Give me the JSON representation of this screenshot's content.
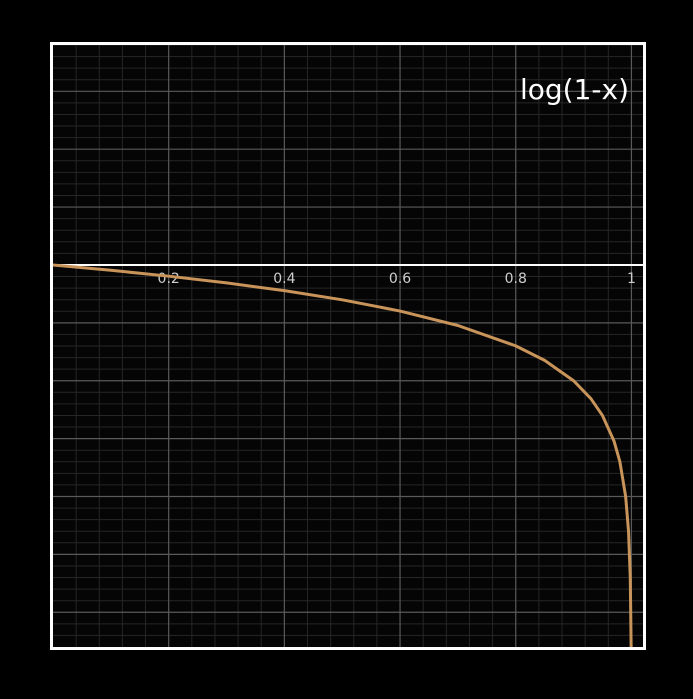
{
  "chart_data": {
    "type": "line",
    "title": "log(1-x)",
    "xlabel": "",
    "ylabel": "",
    "xlim": [
      0,
      1.02
    ],
    "ylim": [
      -3.3,
      1.9
    ],
    "x_ticks": [
      {
        "value": 0.2,
        "label": "0.2"
      },
      {
        "value": 0.4,
        "label": "0.4"
      },
      {
        "value": 0.6,
        "label": "0.6"
      },
      {
        "value": 0.8,
        "label": "0.8"
      },
      {
        "value": 1,
        "label": "1"
      }
    ],
    "grid": true,
    "series": [
      {
        "function": "log(1-x)",
        "color": "#c8945a",
        "x": [
          0,
          0.1,
          0.2,
          0.3,
          0.4,
          0.5,
          0.6,
          0.7,
          0.8,
          0.85,
          0.9,
          0.93,
          0.95,
          0.97,
          0.98,
          0.99,
          0.995,
          0.998,
          0.9995
        ],
        "y": [
          0,
          -0.046,
          -0.097,
          -0.155,
          -0.222,
          -0.301,
          -0.398,
          -0.523,
          -0.699,
          -0.824,
          -1.0,
          -1.155,
          -1.301,
          -1.523,
          -1.699,
          -2.0,
          -2.301,
          -2.699,
          -3.301
        ]
      }
    ]
  },
  "colors": {
    "background": "#000000",
    "plot_background": "#050505",
    "frame": "#ffffff",
    "major_grid": "#5a5a5a",
    "minor_grid": "#262626",
    "axis": "#ffffff",
    "tick_label": "#cfcfcf",
    "curve": "#c8945a"
  }
}
